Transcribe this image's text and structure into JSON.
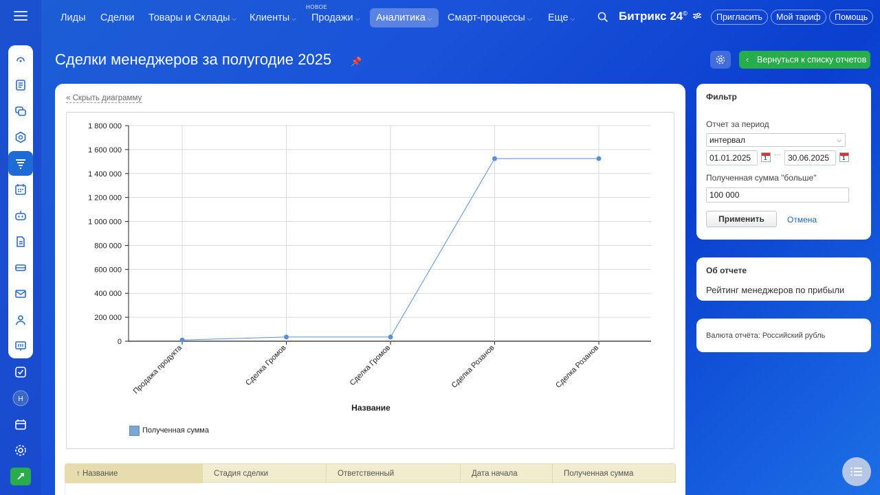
{
  "nav": {
    "items": [
      {
        "label": "Лиды",
        "chevron": false
      },
      {
        "label": "Сделки",
        "chevron": false
      },
      {
        "label": "Товары и Склады",
        "chevron": true
      },
      {
        "label": "Клиенты",
        "chevron": true
      },
      {
        "label": "Продажи",
        "chevron": true,
        "badge": "НОВОЕ"
      },
      {
        "label": "Аналитика",
        "chevron": true,
        "active": true
      },
      {
        "label": "Смарт-процессы",
        "chevron": true
      },
      {
        "label": "Еще",
        "chevron": true
      }
    ],
    "brand": "Битрикс",
    "brand_num": "24",
    "brand_sup": "©",
    "invite": "Пригласить",
    "tariff": "Мой тариф",
    "help": "Помощь"
  },
  "header": {
    "title": "Сделки менеджеров за полугодие 2025",
    "back_button": "Вернуться к списку отчетов"
  },
  "chart_panel": {
    "hide_link": "Скрыть диаграмму"
  },
  "chart_data": {
    "type": "line",
    "categories": [
      "Продажа продукта",
      "Сделка Громов",
      "Сделка Громов",
      "Сделка Розанов",
      "Сделка Розанов"
    ],
    "series": [
      {
        "name": "Полученная сумма",
        "values": [
          10000,
          35000,
          35000,
          1525000,
          1525000
        ],
        "color": "#5b8fd0"
      }
    ],
    "xlabel": "Название",
    "ylabel": "",
    "ylim": [
      0,
      1800000
    ],
    "yticks": [
      "0",
      "200 000",
      "400 000",
      "600 000",
      "800 000",
      "1 000 000",
      "1 200 000",
      "1 400 000",
      "1 600 000",
      "1 800 000"
    ],
    "grid": true,
    "legend": "bottom-left"
  },
  "table": {
    "columns": [
      "Название",
      "Стадия сделки",
      "Ответственный",
      "Дата начала",
      "Полученная сумма"
    ],
    "sort_mark": "↑"
  },
  "filter": {
    "title": "Фильтр",
    "period_label": "Отчет за период",
    "period_value": "интервал",
    "date_from": "01.01.2025",
    "date_sep": "···",
    "date_to": "30.06.2025",
    "sum_label": "Полученная сумма \"больше\"",
    "sum_value": "100 000",
    "apply": "Применить",
    "cancel": "Отмена"
  },
  "about": {
    "title": "Об отчете",
    "text": "Рейтинг менеджеров по прибыли"
  },
  "currency": {
    "text": "Валюта отчёта: Российский рубль"
  },
  "colors": {
    "accent_green": "#27ae4b",
    "link_blue": "#2067b0",
    "table_header": "#f1eccd"
  }
}
